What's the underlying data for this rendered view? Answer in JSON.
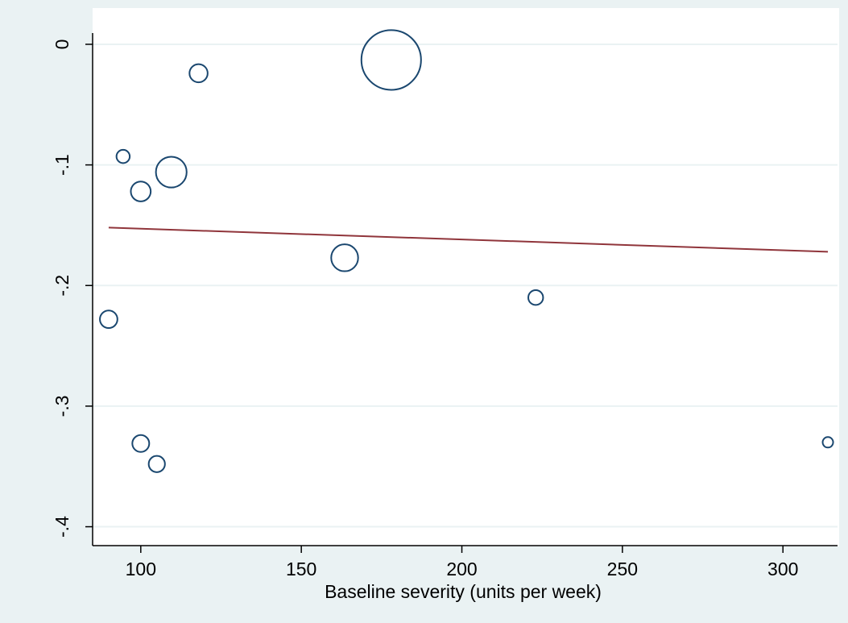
{
  "chart_data": {
    "type": "scatter",
    "title": "",
    "xlabel": "Baseline severity (units per week)",
    "ylabel": "",
    "xlim": [
      85,
      317
    ],
    "ylim": [
      -0.415,
      0.01
    ],
    "xticks": [
      100,
      150,
      200,
      250,
      300
    ],
    "xtick_labels": [
      "100",
      "150",
      "200",
      "250",
      "300"
    ],
    "yticks": [
      0,
      -0.1,
      -0.2,
      -0.3,
      -0.4
    ],
    "ytick_labels": [
      "0",
      "-.1",
      "-.2",
      "-.3",
      "-.4"
    ],
    "grid": "horizontal",
    "legend": "none",
    "points": [
      {
        "x": 90,
        "y": -0.228,
        "weight": 1.4
      },
      {
        "x": 94.5,
        "y": -0.093,
        "weight": 0.8
      },
      {
        "x": 100,
        "y": -0.122,
        "weight": 1.8
      },
      {
        "x": 100,
        "y": -0.331,
        "weight": 1.3
      },
      {
        "x": 105,
        "y": -0.348,
        "weight": 1.2
      },
      {
        "x": 109.5,
        "y": -0.106,
        "weight": 4.3
      },
      {
        "x": 118,
        "y": -0.024,
        "weight": 1.5
      },
      {
        "x": 163.5,
        "y": -0.177,
        "weight": 3.3
      },
      {
        "x": 178,
        "y": -0.013,
        "weight": 16.2
      },
      {
        "x": 223,
        "y": -0.21,
        "weight": 1.0
      },
      {
        "x": 314,
        "y": -0.33,
        "weight": 0.5
      }
    ],
    "fit_line": {
      "x": [
        90,
        314
      ],
      "y": [
        -0.152,
        -0.172
      ]
    },
    "colors": {
      "background": "#eaf2f3",
      "plot_area": "#ffffff",
      "grid": "#eaf2f3",
      "marker": "#1a476f",
      "fit_line": "#90353b"
    }
  }
}
